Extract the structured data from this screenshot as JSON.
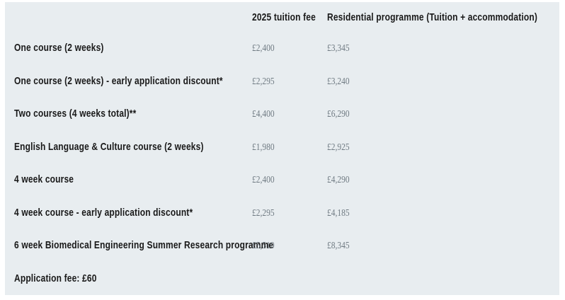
{
  "colors": {
    "panel_background": "#e8edf0",
    "label_text": "#191919",
    "price_text": "#6f7a82",
    "page_background": "#ffffff"
  },
  "table": {
    "columns": [
      "",
      "2025 tuition fee",
      "Residential programme (Tuition + accommodation)"
    ],
    "rows": [
      {
        "label": "One course (2 weeks)",
        "tuition": "£2,400",
        "residential": "£3,345"
      },
      {
        "label": "One course (2 weeks) - early application discount*",
        "tuition": "£2,295",
        "residential": "£3,240"
      },
      {
        "label": "Two courses (4 weeks total)**",
        "tuition": "£4,400",
        "residential": "£6,290"
      },
      {
        "label": "English Language & Culture course (2 weeks)",
        "tuition": "£1,980",
        "residential": "£2,925"
      },
      {
        "label": "4 week course",
        "tuition": "£2,400",
        "residential": "£4,290"
      },
      {
        "label": "4 week course - early application discount*",
        "tuition": "£2,295",
        "residential": "£4,185"
      },
      {
        "label": "6 week Biomedical Engineering Summer Research programme",
        "tuition": "£5,510",
        "residential": "£8,345"
      },
      {
        "label": "Application fee: £60",
        "tuition": "",
        "residential": ""
      }
    ]
  }
}
